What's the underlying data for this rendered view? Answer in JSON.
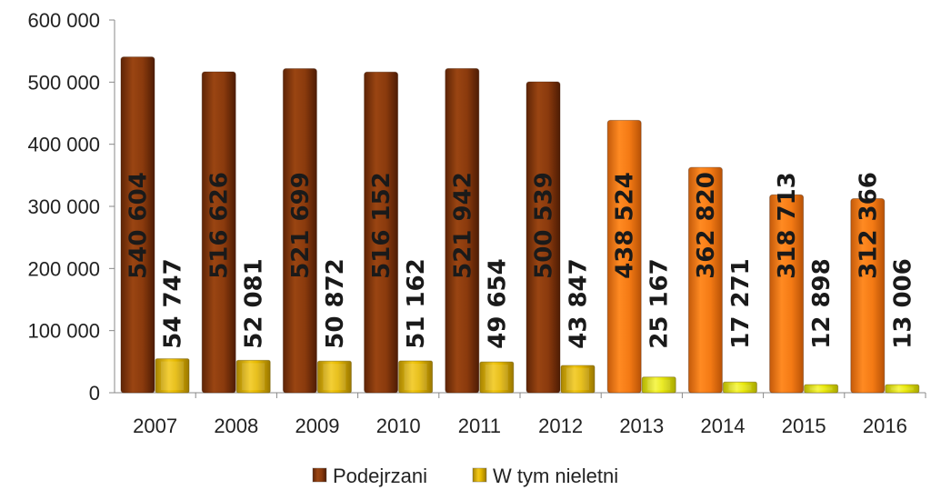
{
  "chart_data": {
    "type": "bar",
    "categories": [
      "2007",
      "2008",
      "2009",
      "2010",
      "2011",
      "2012",
      "2013",
      "2014",
      "2015",
      "2016"
    ],
    "series": [
      {
        "name": "Podejrzani",
        "values": [
          540604,
          516626,
          521699,
          516152,
          521942,
          500539,
          438524,
          362820,
          318713,
          312366
        ],
        "labels": [
          "540 604",
          "516 626",
          "521 699",
          "516 152",
          "521 942",
          "500 539",
          "438 524",
          "362 820",
          "318 713",
          "312 366"
        ],
        "colors": [
          "#8B3A0E",
          "#8B3A0E",
          "#8B3A0E",
          "#8B3A0E",
          "#8B3A0E",
          "#8B3A0E",
          "#F07A16",
          "#F07A16",
          "#F07A16",
          "#F07A16"
        ]
      },
      {
        "name": "W tym nieletni",
        "values": [
          54747,
          52081,
          50872,
          51162,
          49654,
          43847,
          25167,
          17271,
          12898,
          13006
        ],
        "labels": [
          "54 747",
          "52 081",
          "50 872",
          "51 162",
          "49 654",
          "43 847",
          "25 167",
          "17 271",
          "12 898",
          "13 006"
        ],
        "colors": [
          "#E5B800",
          "#E5B800",
          "#E5B800",
          "#E5B800",
          "#E5B800",
          "#E5B800",
          "#E8E80A",
          "#E8E80A",
          "#E8E80A",
          "#E8E80A"
        ]
      }
    ],
    "yticks": [
      0,
      100000,
      200000,
      300000,
      400000,
      500000,
      600000
    ],
    "ytick_labels": [
      "0",
      "100 000",
      "200 000",
      "300 000",
      "400 000",
      "500 000",
      "600 000"
    ],
    "ylim": [
      0,
      600000
    ],
    "grid": false,
    "legend_position": "bottom",
    "legend_colors": [
      "#8B3A0E",
      "#E5B800"
    ]
  }
}
